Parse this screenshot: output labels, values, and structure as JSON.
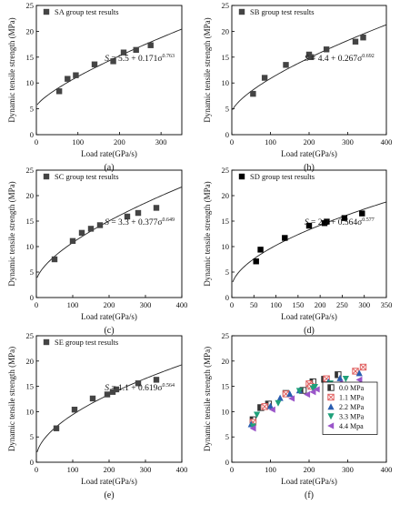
{
  "chart_data": [
    {
      "id": "a",
      "type": "scatter",
      "panel_label": "(a)",
      "xlabel": "Load rate(GPa/s)",
      "ylabel": "Dynamic tensile strength (MPa)",
      "xlim": [
        0,
        350
      ],
      "ylim": [
        0,
        25
      ],
      "xticks": [
        0,
        100,
        200,
        300
      ],
      "yticks": [
        0,
        5,
        10,
        15,
        20,
        25
      ],
      "legend": "top-left",
      "series": [
        {
          "name": "SA group test results",
          "marker": "square",
          "color": "#444444",
          "x": [
            55,
            75,
            95,
            140,
            185,
            210,
            240,
            275
          ],
          "y": [
            8.4,
            10.8,
            11.5,
            13.6,
            14.2,
            15.9,
            16.4,
            17.3
          ]
        }
      ],
      "fit": {
        "a": 5.5,
        "b": 0.171,
        "c": 0.763,
        "x0": 2,
        "x1": 350
      },
      "equation": {
        "lhs": "S",
        "eq": " = 5.5 + 0.171σ",
        "exp": "0.763"
      }
    },
    {
      "id": "b",
      "type": "scatter",
      "panel_label": "(b)",
      "xlabel": "Load rate(GPa/s)",
      "ylabel": "Dynamic tensile strength (MPa)",
      "xlim": [
        0,
        400
      ],
      "ylim": [
        0,
        25
      ],
      "xticks": [
        0,
        100,
        200,
        300,
        400
      ],
      "yticks": [
        0,
        5,
        10,
        15,
        20,
        25
      ],
      "legend": "top-left",
      "series": [
        {
          "name": "SB group test results",
          "marker": "square",
          "color": "#444444",
          "x": [
            55,
            85,
            140,
            200,
            205,
            245,
            320,
            340
          ],
          "y": [
            7.9,
            11.0,
            13.5,
            15.5,
            15.0,
            16.5,
            18.0,
            18.8
          ]
        }
      ],
      "fit": {
        "a": 4.4,
        "b": 0.267,
        "c": 0.692,
        "x0": 2,
        "x1": 400
      },
      "equation": {
        "lhs": "S",
        "eq": " = 4.4 + 0.267σ",
        "exp": "0.692"
      }
    },
    {
      "id": "c",
      "type": "scatter",
      "panel_label": "(c)",
      "xlabel": "Load rate(GPa/s)",
      "ylabel": "Dynamic tensile strength (MPa)",
      "xlim": [
        0,
        400
      ],
      "ylim": [
        0,
        25
      ],
      "xticks": [
        0,
        100,
        200,
        300,
        400
      ],
      "yticks": [
        0,
        5,
        10,
        15,
        20,
        25
      ],
      "legend": "top-left",
      "series": [
        {
          "name": "SC group test results",
          "marker": "square",
          "color": "#444444",
          "x": [
            50,
            100,
            125,
            150,
            175,
            250,
            280,
            330
          ],
          "y": [
            7.5,
            11.1,
            12.7,
            13.5,
            14.2,
            15.9,
            16.6,
            17.6
          ]
        }
      ],
      "fit": {
        "a": 3.3,
        "b": 0.377,
        "c": 0.649,
        "x0": 2,
        "x1": 400
      },
      "equation": {
        "lhs": "S",
        "eq": " = 3.3 + 0.377σ",
        "exp": "0.649"
      }
    },
    {
      "id": "d",
      "type": "scatter",
      "panel_label": "(d)",
      "xlabel": "Load rate(GPa/s)",
      "ylabel": "Dynamic tensile strength (MPa)",
      "xlim": [
        0,
        350
      ],
      "ylim": [
        0,
        25
      ],
      "xticks": [
        0,
        50,
        100,
        150,
        200,
        250,
        300,
        350
      ],
      "yticks": [
        0,
        5,
        10,
        15,
        20,
        25
      ],
      "legend": "top-left",
      "series": [
        {
          "name": "SD group test results",
          "marker": "square",
          "color": "#000000",
          "x": [
            55,
            65,
            120,
            175,
            210,
            215,
            255,
            295
          ],
          "y": [
            7.1,
            9.4,
            11.7,
            14.1,
            14.6,
            14.9,
            15.6,
            16.5
          ]
        }
      ],
      "fit": {
        "a": 2.2,
        "b": 0.564,
        "c": 0.577,
        "x0": 2,
        "x1": 350
      },
      "equation": {
        "lhs": "S",
        "eq": " = 2.2 + 0.564σ",
        "exp": "0.577"
      }
    },
    {
      "id": "e",
      "type": "scatter",
      "panel_label": "(e)",
      "xlabel": "Load rate(GPa/s)",
      "ylabel": "Dynamic tensile strength (MPa)",
      "xlim": [
        0,
        400
      ],
      "ylim": [
        0,
        25
      ],
      "xticks": [
        0,
        100,
        200,
        300,
        400
      ],
      "yticks": [
        0,
        5,
        10,
        15,
        20,
        25
      ],
      "legend": "top-left",
      "series": [
        {
          "name": "SE group test results",
          "marker": "square",
          "color": "#444444",
          "x": [
            55,
            105,
            155,
            195,
            210,
            220,
            280,
            330
          ],
          "y": [
            6.7,
            10.4,
            12.6,
            13.4,
            13.9,
            14.4,
            15.6,
            16.3
          ]
        }
      ],
      "fit": {
        "a": 1.1,
        "b": 0.619,
        "c": 0.564,
        "x0": 2,
        "x1": 400
      },
      "equation": {
        "lhs": "S",
        "eq": " = 1.1 + 0.619σ",
        "exp": "0.564"
      }
    },
    {
      "id": "f",
      "type": "scatter",
      "panel_label": "(f)",
      "xlabel": "Load rate(GPa/s)",
      "ylabel": "Dynamic tensile strength (MPa)",
      "xlim": [
        0,
        400
      ],
      "ylim": [
        0,
        25
      ],
      "xticks": [
        0,
        100,
        200,
        300,
        400
      ],
      "yticks": [
        0,
        5,
        10,
        15,
        20,
        25
      ],
      "legend": "bottom-right",
      "series": [
        {
          "name": "0.0 MPa",
          "marker": "square-half",
          "color": "#333333",
          "x": [
            55,
            75,
            95,
            140,
            185,
            210,
            240,
            275
          ],
          "y": [
            8.4,
            10.8,
            11.5,
            13.6,
            14.2,
            15.9,
            16.4,
            17.3
          ]
        },
        {
          "name": "1.1 MPa",
          "marker": "circle-x",
          "color": "#e06060",
          "x": [
            55,
            85,
            140,
            200,
            205,
            245,
            320,
            340
          ],
          "y": [
            7.9,
            11.0,
            13.5,
            15.5,
            15.0,
            16.5,
            18.0,
            18.8
          ]
        },
        {
          "name": "2.2 MPa",
          "marker": "triangle-up",
          "color": "#2a5db0",
          "x": [
            50,
            100,
            125,
            150,
            175,
            250,
            280,
            330
          ],
          "y": [
            7.5,
            11.1,
            12.7,
            13.5,
            14.2,
            15.9,
            16.6,
            17.6
          ]
        },
        {
          "name": "3.3 MPa",
          "marker": "triangle-down",
          "color": "#1fa07a",
          "x": [
            55,
            65,
            120,
            175,
            210,
            215,
            255,
            295
          ],
          "y": [
            7.1,
            9.4,
            11.7,
            14.1,
            14.6,
            14.9,
            15.6,
            16.5
          ]
        },
        {
          "name": "4.4 Mpa",
          "marker": "triangle-left",
          "color": "#9a55c9",
          "x": [
            55,
            105,
            155,
            195,
            210,
            220,
            280,
            330
          ],
          "y": [
            6.7,
            10.4,
            12.6,
            13.4,
            13.9,
            14.4,
            15.6,
            16.3
          ]
        }
      ]
    }
  ]
}
